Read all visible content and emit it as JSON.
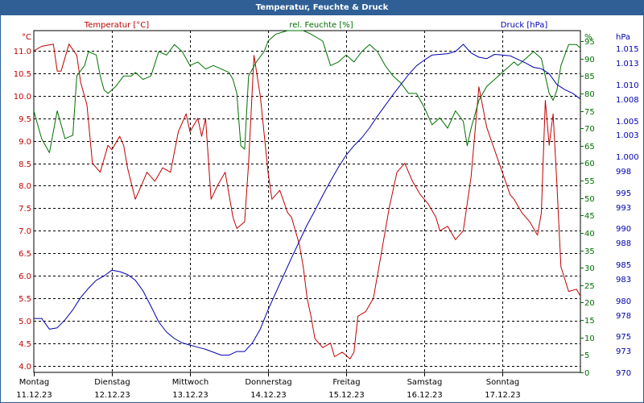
{
  "chart_data": {
    "type": "line",
    "title": "Temperatur, Feuchte & Druck",
    "legend_placement": "top",
    "grid": true,
    "colors": {
      "temperature": "#c00000",
      "humidity": "#007000",
      "pressure": "#0000b0",
      "title_bar": "#2f5f95"
    },
    "x_axis": {
      "range": [
        0,
        7
      ],
      "day_labels": [
        {
          "day": "Montag",
          "date": "11.12.23"
        },
        {
          "day": "Dienstag",
          "date": "12.12.23"
        },
        {
          "day": "Mittwoch",
          "date": "13.12.23"
        },
        {
          "day": "Donnerstag",
          "date": "14.12.23"
        },
        {
          "day": "Freitag",
          "date": "15.12.23"
        },
        {
          "day": "Samstag",
          "date": "16.12.23"
        },
        {
          "day": "Sonntag",
          "date": "17.12.23"
        }
      ]
    },
    "axes": {
      "temperature": {
        "label": "Temperatur [°C]",
        "unit": "°C",
        "ylim": [
          3.85,
          11.45
        ],
        "ticks": [
          "11.0",
          "10.5",
          "10.0",
          "9.5",
          "9.0",
          "8.5",
          "8.0",
          "7.5",
          "7.0",
          "6.5",
          "6.0",
          "5.5",
          "5.0",
          "4.5",
          "4.0"
        ]
      },
      "humidity": {
        "label": "rel. Feuchte [%]",
        "unit": "%",
        "ylim": [
          0,
          98
        ],
        "ticks": [
          "0",
          "5",
          "10",
          "15",
          "20",
          "25",
          "30",
          "35",
          "40",
          "45",
          "50",
          "55",
          "60",
          "65",
          "70",
          "75",
          "80",
          "85",
          "90",
          "95"
        ]
      },
      "pressure": {
        "label": "Druck [hPa]",
        "unit": "hPa",
        "ylim": [
          970,
          1017.5
        ],
        "ticks": [
          "970",
          "973",
          "975",
          "978",
          "980",
          "983",
          "985",
          "988",
          "990",
          "993",
          "995",
          "998",
          "1.000",
          "1.003",
          "1.005",
          "1.008",
          "1.010",
          "1.013",
          "1.015"
        ]
      }
    },
    "series": [
      {
        "name": "Temperatur [°C]",
        "axis": "temperature",
        "points": [
          [
            0,
            11.0
          ],
          [
            0.1,
            11.1
          ],
          [
            0.25,
            11.15
          ],
          [
            0.3,
            10.55
          ],
          [
            0.35,
            10.55
          ],
          [
            0.45,
            11.15
          ],
          [
            0.55,
            10.9
          ],
          [
            0.6,
            10.3
          ],
          [
            0.68,
            9.8
          ],
          [
            0.75,
            8.5
          ],
          [
            0.85,
            8.3
          ],
          [
            0.95,
            8.9
          ],
          [
            1.0,
            8.8
          ],
          [
            1.1,
            9.1
          ],
          [
            1.15,
            8.9
          ],
          [
            1.2,
            8.4
          ],
          [
            1.3,
            7.7
          ],
          [
            1.4,
            8.1
          ],
          [
            1.45,
            8.3
          ],
          [
            1.55,
            8.1
          ],
          [
            1.65,
            8.4
          ],
          [
            1.75,
            8.3
          ],
          [
            1.85,
            9.2
          ],
          [
            1.95,
            9.6
          ],
          [
            2.0,
            9.2
          ],
          [
            2.1,
            9.5
          ],
          [
            2.15,
            9.1
          ],
          [
            2.2,
            9.5
          ],
          [
            2.27,
            7.7
          ],
          [
            2.35,
            8.0
          ],
          [
            2.45,
            8.3
          ],
          [
            2.55,
            7.3
          ],
          [
            2.6,
            7.05
          ],
          [
            2.7,
            7.2
          ],
          [
            2.75,
            8.5
          ],
          [
            2.82,
            10.9
          ],
          [
            2.9,
            10.0
          ],
          [
            3.0,
            8.3
          ],
          [
            3.05,
            7.7
          ],
          [
            3.15,
            7.9
          ],
          [
            3.25,
            7.4
          ],
          [
            3.3,
            7.3
          ],
          [
            3.4,
            6.7
          ],
          [
            3.45,
            6.2
          ],
          [
            3.5,
            5.5
          ],
          [
            3.55,
            5.1
          ],
          [
            3.6,
            4.6
          ],
          [
            3.7,
            4.4
          ],
          [
            3.8,
            4.5
          ],
          [
            3.85,
            4.2
          ],
          [
            3.95,
            4.3
          ],
          [
            4.05,
            4.15
          ],
          [
            4.1,
            4.3
          ],
          [
            4.15,
            5.1
          ],
          [
            4.25,
            5.2
          ],
          [
            4.35,
            5.5
          ],
          [
            4.45,
            6.5
          ],
          [
            4.55,
            7.5
          ],
          [
            4.65,
            8.3
          ],
          [
            4.75,
            8.5
          ],
          [
            4.85,
            8.1
          ],
          [
            4.95,
            7.8
          ],
          [
            5.05,
            7.6
          ],
          [
            5.15,
            7.3
          ],
          [
            5.2,
            7.0
          ],
          [
            5.3,
            7.1
          ],
          [
            5.4,
            6.8
          ],
          [
            5.5,
            7.0
          ],
          [
            5.6,
            8.2
          ],
          [
            5.7,
            10.2
          ],
          [
            5.8,
            9.3
          ],
          [
            5.9,
            8.8
          ],
          [
            6.0,
            8.3
          ],
          [
            6.1,
            7.8
          ],
          [
            6.15,
            7.7
          ],
          [
            6.25,
            7.4
          ],
          [
            6.35,
            7.2
          ],
          [
            6.45,
            6.9
          ],
          [
            6.5,
            7.4
          ],
          [
            6.55,
            9.9
          ],
          [
            6.6,
            8.9
          ],
          [
            6.65,
            9.6
          ],
          [
            6.7,
            8.0
          ],
          [
            6.75,
            6.2
          ],
          [
            6.85,
            5.65
          ],
          [
            6.95,
            5.7
          ],
          [
            7.0,
            5.55
          ]
        ]
      },
      {
        "name": "rel. Feuchte [%]",
        "axis": "humidity",
        "points": [
          [
            0,
            75
          ],
          [
            0.1,
            67
          ],
          [
            0.2,
            63
          ],
          [
            0.3,
            75
          ],
          [
            0.4,
            67
          ],
          [
            0.5,
            68
          ],
          [
            0.55,
            85
          ],
          [
            0.65,
            88
          ],
          [
            0.7,
            92
          ],
          [
            0.8,
            91
          ],
          [
            0.85,
            85
          ],
          [
            0.9,
            81
          ],
          [
            0.95,
            80
          ],
          [
            1.0,
            81
          ],
          [
            1.05,
            82
          ],
          [
            1.15,
            85
          ],
          [
            1.25,
            85
          ],
          [
            1.3,
            86
          ],
          [
            1.4,
            84
          ],
          [
            1.5,
            85
          ],
          [
            1.6,
            92
          ],
          [
            1.7,
            91
          ],
          [
            1.8,
            94
          ],
          [
            1.9,
            92
          ],
          [
            1.95,
            90
          ],
          [
            2.0,
            88
          ],
          [
            2.1,
            89
          ],
          [
            2.2,
            87
          ],
          [
            2.3,
            88
          ],
          [
            2.4,
            87
          ],
          [
            2.5,
            86
          ],
          [
            2.55,
            84
          ],
          [
            2.6,
            80
          ],
          [
            2.65,
            65
          ],
          [
            2.7,
            64
          ],
          [
            2.75,
            85
          ],
          [
            2.85,
            89
          ],
          [
            2.95,
            92
          ],
          [
            3.0,
            95
          ],
          [
            3.1,
            97
          ],
          [
            3.25,
            98
          ],
          [
            3.45,
            98
          ],
          [
            3.55,
            97
          ],
          [
            3.7,
            95
          ],
          [
            3.8,
            88
          ],
          [
            3.9,
            89
          ],
          [
            4.0,
            91
          ],
          [
            4.1,
            89
          ],
          [
            4.2,
            92
          ],
          [
            4.3,
            94
          ],
          [
            4.4,
            92
          ],
          [
            4.5,
            88
          ],
          [
            4.6,
            85
          ],
          [
            4.7,
            83
          ],
          [
            4.8,
            80
          ],
          [
            4.9,
            80
          ],
          [
            5.0,
            76
          ],
          [
            5.1,
            71
          ],
          [
            5.2,
            73
          ],
          [
            5.3,
            70
          ],
          [
            5.4,
            75
          ],
          [
            5.5,
            72
          ],
          [
            5.55,
            65
          ],
          [
            5.6,
            70
          ],
          [
            5.7,
            78
          ],
          [
            5.8,
            82
          ],
          [
            5.9,
            84
          ],
          [
            6.0,
            86
          ],
          [
            6.1,
            88
          ],
          [
            6.15,
            89
          ],
          [
            6.2,
            88
          ],
          [
            6.3,
            90
          ],
          [
            6.4,
            92
          ],
          [
            6.5,
            90
          ],
          [
            6.6,
            80
          ],
          [
            6.65,
            78
          ],
          [
            6.7,
            81
          ],
          [
            6.75,
            88
          ],
          [
            6.85,
            94
          ],
          [
            6.95,
            94
          ],
          [
            7.0,
            93
          ]
        ]
      },
      {
        "name": "Druck [hPa]",
        "axis": "pressure",
        "points": [
          [
            0,
            977.5
          ],
          [
            0.1,
            977.5
          ],
          [
            0.2,
            976.0
          ],
          [
            0.3,
            976.2
          ],
          [
            0.4,
            977.3
          ],
          [
            0.5,
            978.7
          ],
          [
            0.6,
            980.4
          ],
          [
            0.7,
            981.7
          ],
          [
            0.8,
            982.8
          ],
          [
            0.9,
            983.4
          ],
          [
            1.0,
            984.2
          ],
          [
            1.1,
            984.0
          ],
          [
            1.2,
            983.6
          ],
          [
            1.3,
            982.8
          ],
          [
            1.4,
            981.3
          ],
          [
            1.5,
            979.2
          ],
          [
            1.6,
            977.0
          ],
          [
            1.7,
            975.6
          ],
          [
            1.8,
            974.7
          ],
          [
            1.9,
            974.1
          ],
          [
            2.0,
            973.8
          ],
          [
            2.1,
            973.5
          ],
          [
            2.2,
            973.2
          ],
          [
            2.3,
            972.8
          ],
          [
            2.4,
            972.4
          ],
          [
            2.5,
            972.4
          ],
          [
            2.6,
            972.9
          ],
          [
            2.7,
            972.9
          ],
          [
            2.8,
            974.1
          ],
          [
            2.9,
            976.0
          ],
          [
            3.0,
            978.7
          ],
          [
            3.1,
            981.1
          ],
          [
            3.2,
            983.5
          ],
          [
            3.3,
            985.9
          ],
          [
            3.4,
            988.2
          ],
          [
            3.5,
            990.5
          ],
          [
            3.6,
            992.5
          ],
          [
            3.7,
            994.6
          ],
          [
            3.8,
            996.6
          ],
          [
            3.9,
            998.5
          ],
          [
            4.0,
            1000.2
          ],
          [
            4.1,
            1001.5
          ],
          [
            4.2,
            1002.6
          ],
          [
            4.3,
            1004.0
          ],
          [
            4.4,
            1005.6
          ],
          [
            4.5,
            1007.1
          ],
          [
            4.6,
            1008.6
          ],
          [
            4.7,
            1010.0
          ],
          [
            4.8,
            1011.4
          ],
          [
            4.9,
            1012.6
          ],
          [
            5.0,
            1013.4
          ],
          [
            5.1,
            1014.1
          ],
          [
            5.2,
            1014.2
          ],
          [
            5.3,
            1014.3
          ],
          [
            5.4,
            1014.6
          ],
          [
            5.5,
            1015.6
          ],
          [
            5.6,
            1014.4
          ],
          [
            5.7,
            1013.8
          ],
          [
            5.8,
            1013.6
          ],
          [
            5.9,
            1014.2
          ],
          [
            6.0,
            1014.1
          ],
          [
            6.1,
            1014.0
          ],
          [
            6.2,
            1013.5
          ],
          [
            6.3,
            1013.0
          ],
          [
            6.4,
            1012.4
          ],
          [
            6.5,
            1012.2
          ],
          [
            6.6,
            1011.5
          ],
          [
            6.7,
            1010.0
          ],
          [
            6.8,
            1009.3
          ],
          [
            6.9,
            1008.8
          ],
          [
            7.0,
            1008.0
          ]
        ]
      }
    ]
  }
}
